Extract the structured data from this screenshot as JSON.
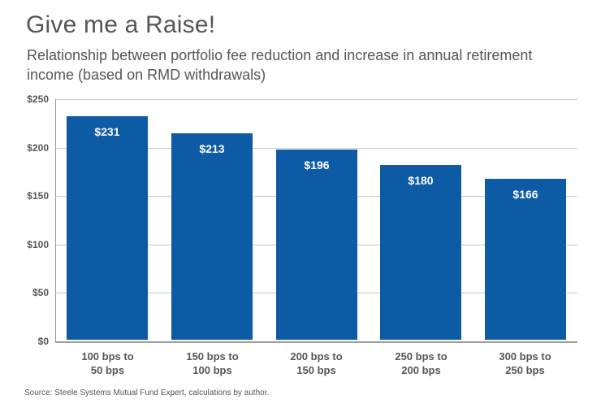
{
  "page": {
    "title": "Give me a Raise!",
    "subtitle": "Relationship between portfolio fee reduction and increase in annual retirement income (based on RMD withdrawals)",
    "source": "Source: Steele Systems Mutual Fund Expert, calculations by author."
  },
  "colors": {
    "bar": "#0E5BA5",
    "title_text": "#54565A",
    "axis_text": "#54565A",
    "gridline": "#C6C7C8",
    "axis_line": "#9B9C9E",
    "value_label": "#FFFFFF",
    "background": "#FFFFFF"
  },
  "chart_data": {
    "type": "bar",
    "title": "Give me a Raise!",
    "subtitle": "Relationship between portfolio fee reduction and increase in annual retirement income (based on RMD withdrawals)",
    "categories": [
      "100 bps to\n50 bps",
      "150 bps to\n100 bps",
      "200 bps to\n150 bps",
      "250 bps to\n200 bps",
      "300 bps to\n250 bps"
    ],
    "values": [
      231,
      213,
      196,
      180,
      166
    ],
    "value_labels": [
      "$231",
      "$213",
      "$196",
      "$180",
      "$166"
    ],
    "xlabel": "",
    "ylabel": "",
    "ylim": [
      0,
      250
    ],
    "ytick_step": 50,
    "ytick_labels": [
      "$0",
      "$50",
      "$100",
      "$150",
      "$200",
      "$250"
    ],
    "grid": true,
    "legend": false,
    "source": "Source: Steele Systems Mutual Fund Expert, calculations by author."
  }
}
